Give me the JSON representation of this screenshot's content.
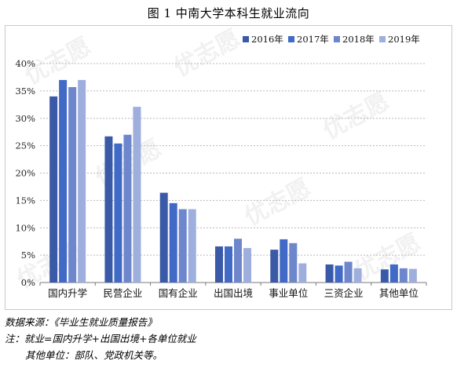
{
  "title": "图  1  中南大学本科生就业流向",
  "watermark": "优志愿",
  "notes": {
    "source": "数据来源：《毕业生就业质量报告》",
    "note1": "注：就业=国内升学+出国出境+各单位就业",
    "note2": "其他单位：部队、党政机关等。"
  },
  "chart_data": {
    "type": "bar",
    "title": "",
    "xlabel": "",
    "ylabel": "",
    "categories": [
      "国内升学",
      "民营企业",
      "国有企业",
      "出国出境",
      "事业单位",
      "三资企业",
      "其他单位"
    ],
    "series": [
      {
        "name": "2016年",
        "color": "#3a5aa8",
        "values": [
          34.0,
          26.7,
          16.4,
          6.6,
          6.0,
          3.3,
          2.4
        ]
      },
      {
        "name": "2017年",
        "color": "#4169c6",
        "values": [
          37.0,
          25.4,
          14.5,
          6.6,
          7.9,
          3.1,
          3.3
        ]
      },
      {
        "name": "2018年",
        "color": "#6e86cc",
        "values": [
          35.7,
          27.0,
          13.4,
          8.0,
          7.2,
          3.8,
          2.6
        ]
      },
      {
        "name": "2019年",
        "color": "#9eafde",
        "values": [
          37.0,
          32.1,
          13.4,
          6.3,
          3.5,
          2.6,
          2.5
        ]
      }
    ],
    "ylim": [
      0,
      40
    ],
    "yticks": [
      "0%",
      "5%",
      "10%",
      "15%",
      "20%",
      "25%",
      "30%",
      "35%",
      "40%"
    ],
    "grid": true,
    "legend": "top-right"
  }
}
